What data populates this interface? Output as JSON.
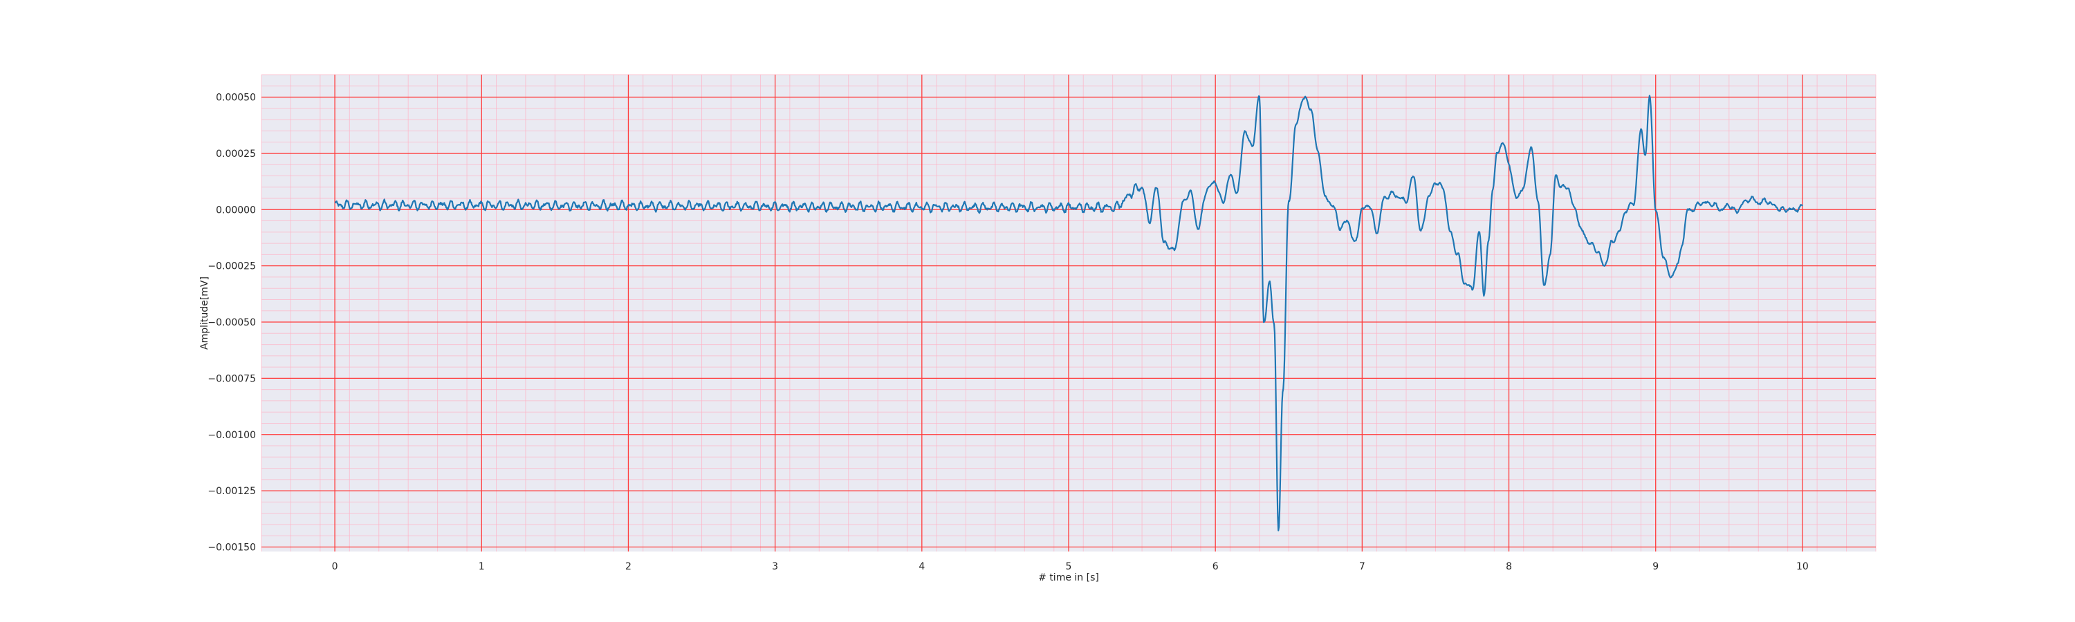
{
  "chart_data": {
    "type": "line",
    "title": "",
    "xlabel": "# time in [s]",
    "ylabel": "Amplitude[mV]",
    "xlim": [
      -0.5,
      10.5
    ],
    "ylim": [
      -0.00152,
      0.0006
    ],
    "xticks": [
      0,
      1,
      2,
      3,
      4,
      5,
      6,
      7,
      8,
      9,
      10
    ],
    "xtick_labels": [
      "0",
      "1",
      "2",
      "3",
      "4",
      "5",
      "6",
      "7",
      "8",
      "9",
      "10"
    ],
    "yticks": [
      0.0005,
      0.00025,
      0.0,
      -0.00025,
      -0.0005,
      -0.00075,
      -0.001,
      -0.00125,
      -0.0015
    ],
    "ytick_labels": [
      "0.00050",
      "0.00025",
      "0.00000",
      "−0.00025",
      "−0.00050",
      "−0.00075",
      "−0.00100",
      "−0.00125",
      "−0.00150"
    ],
    "grid": true,
    "minor_grid": true,
    "colors": {
      "background": "#eaeaf2",
      "major_grid": "#ff3b3b",
      "minor_grid": "#ffb3c6",
      "line": "#1f77b4"
    },
    "series": [
      {
        "name": "",
        "x": [
          0.0,
          5.3,
          5.5,
          5.55,
          5.6,
          5.65,
          5.72,
          5.78,
          5.83,
          5.88,
          5.95,
          6.0,
          6.05,
          6.1,
          6.15,
          6.2,
          6.25,
          6.3,
          6.33,
          6.37,
          6.4,
          6.43,
          6.46,
          6.5,
          6.55,
          6.6,
          6.65,
          6.7,
          6.75,
          6.8,
          6.85,
          6.9,
          6.95,
          7.0,
          7.05,
          7.1,
          7.15,
          7.2,
          7.3,
          7.35,
          7.4,
          7.45,
          7.5,
          7.55,
          7.6,
          7.65,
          7.7,
          7.75,
          7.8,
          7.83,
          7.86,
          7.89,
          7.92,
          7.96,
          8.0,
          8.05,
          8.1,
          8.15,
          8.2,
          8.24,
          8.28,
          8.32,
          8.36,
          8.4,
          8.45,
          8.5,
          8.55,
          8.6,
          8.65,
          8.7,
          8.75,
          8.8,
          8.85,
          8.9,
          8.93,
          8.96,
          9.0,
          9.05,
          9.1,
          9.15,
          9.18,
          9.22,
          9.26,
          9.3,
          9.35,
          9.4,
          9.45,
          9.5,
          9.55,
          9.6,
          9.65,
          9.7,
          9.75,
          9.8,
          9.85,
          9.9,
          9.95,
          10.0
        ],
        "y": [
          2e-05,
          1e-05,
          0.0001,
          -5e-05,
          0.0001,
          -0.00015,
          -0.00018,
          3e-05,
          8e-05,
          -8e-05,
          0.0001,
          0.00012,
          3e-05,
          0.00015,
          8e-05,
          0.00035,
          0.00028,
          0.0005,
          -0.0005,
          -0.00033,
          -0.0005,
          -0.00143,
          -0.0008,
          3e-05,
          0.00038,
          0.0005,
          0.00045,
          0.00025,
          5e-05,
          2e-05,
          -8e-05,
          -5e-05,
          -0.00015,
          0.0,
          2e-05,
          -0.0001,
          5e-05,
          7e-05,
          4e-05,
          0.00015,
          -0.0001,
          5e-05,
          0.00012,
          0.0001,
          -0.0001,
          -0.0002,
          -0.00033,
          -0.00035,
          -0.0001,
          -0.00038,
          -0.00015,
          0.0001,
          0.00025,
          0.0003,
          0.0002,
          5e-05,
          0.0001,
          0.00028,
          3e-05,
          -0.00035,
          -0.0002,
          0.00015,
          0.0001,
          0.0001,
          0.0,
          -0.0001,
          -0.00015,
          -0.00018,
          -0.00025,
          -0.00015,
          -0.0001,
          0.0,
          3e-05,
          0.00035,
          0.00025,
          0.0005,
          0.0,
          -0.0002,
          -0.0003,
          -0.00025,
          -0.00015,
          0.0,
          0.0,
          3e-05,
          3e-05,
          2e-05,
          0.0,
          2e-05,
          -1e-05,
          3e-05,
          5e-05,
          3e-05,
          4e-05,
          2e-05,
          0.0,
          0.0,
          0.0,
          1e-05
        ]
      }
    ]
  }
}
